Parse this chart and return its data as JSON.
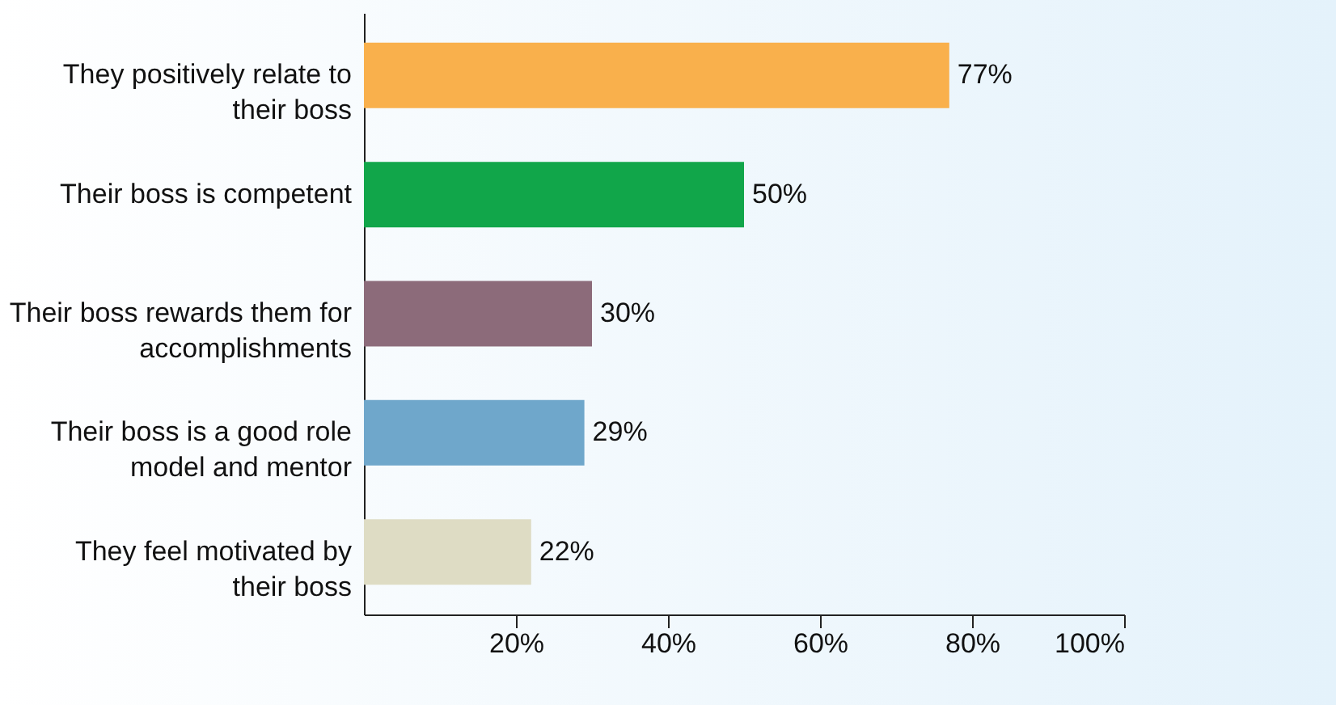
{
  "chart_data": {
    "type": "bar",
    "orientation": "horizontal",
    "categories": [
      "They positively relate to their boss",
      "Their boss is competent",
      "Their boss rewards them for accomplishments",
      "Their boss is a good role model and mentor",
      "They feel motivated by their boss"
    ],
    "values": [
      77,
      50,
      30,
      29,
      22
    ],
    "colors": [
      "#f9b04c",
      "#11a64a",
      "#8c6b7a",
      "#6fa7cb",
      "#dedcc4"
    ],
    "value_labels": [
      "77%",
      "50%",
      "30%",
      "29%",
      "22%"
    ],
    "xlim": [
      0,
      100
    ],
    "xticks": [
      {
        "value": 20,
        "label": "20%"
      },
      {
        "value": 40,
        "label": "40%"
      },
      {
        "value": 60,
        "label": "60%"
      },
      {
        "value": 80,
        "label": "80%"
      },
      {
        "value": 100,
        "label": "100%"
      }
    ],
    "grid": false
  }
}
